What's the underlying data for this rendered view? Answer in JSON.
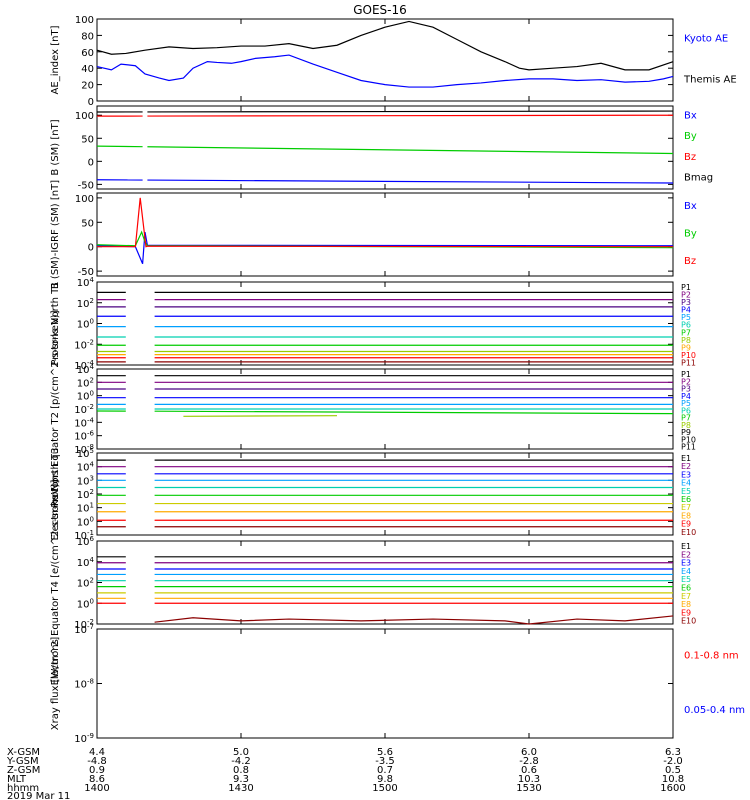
{
  "title": "GOES-16",
  "footer": {
    "date": "2019 Mar 11",
    "row_labels": [
      "X-GSM",
      "Y-GSM",
      "Z-GSM",
      "MLT",
      "hhmm"
    ],
    "columns": [
      [
        "4.4",
        "-4.8",
        "0.9",
        "8.6",
        "1400"
      ],
      [
        "5.0",
        "-4.2",
        "0.8",
        "9.3",
        "1430"
      ],
      [
        "5.6",
        "-3.5",
        "0.7",
        "9.8",
        "1500"
      ],
      [
        "6.0",
        "-2.8",
        "0.6",
        "10.3",
        "1530"
      ],
      [
        "6.3",
        "-2.0",
        "0.5",
        "10.8",
        "1600"
      ]
    ]
  },
  "chart_data": [
    {
      "type": "line",
      "ylabel": "AE_index [nT]",
      "ylim": [
        0,
        100
      ],
      "yticks": [
        "0",
        "20",
        "40",
        "60",
        "80",
        "100"
      ],
      "xlim": [
        0,
        120
      ],
      "series": [
        {
          "name": "Kyoto AE",
          "color": "#0000ff",
          "x": [
            0,
            3,
            5,
            8,
            10,
            13,
            15,
            18,
            20,
            23,
            25,
            28,
            30,
            33,
            37,
            40,
            45,
            50,
            55,
            60,
            65,
            70,
            75,
            80,
            85,
            90,
            95,
            100,
            105,
            110,
            115,
            118,
            120
          ],
          "y": [
            42,
            38,
            45,
            43,
            33,
            28,
            25,
            28,
            40,
            48,
            47,
            46,
            48,
            52,
            54,
            56,
            45,
            35,
            25,
            20,
            17,
            17,
            20,
            22,
            25,
            27,
            27,
            25,
            26,
            23,
            24,
            27,
            30
          ]
        },
        {
          "name": "Themis AE",
          "color": "#000000",
          "x": [
            0,
            3,
            6,
            10,
            15,
            20,
            25,
            30,
            35,
            40,
            45,
            50,
            55,
            60,
            65,
            70,
            75,
            80,
            85,
            88,
            90,
            95,
            100,
            105,
            110,
            115,
            120
          ],
          "y": [
            62,
            57,
            58,
            62,
            66,
            64,
            65,
            67,
            67,
            70,
            64,
            68,
            80,
            90,
            97,
            90,
            75,
            60,
            48,
            40,
            38,
            40,
            42,
            46,
            38,
            38,
            48
          ]
        }
      ]
    },
    {
      "type": "line",
      "ylabel": "B (SM) [nT]",
      "ylim": [
        -60,
        120
      ],
      "yticks": [
        "-50",
        "0",
        "50",
        "100"
      ],
      "xlim": [
        0,
        120
      ],
      "gap": [
        9.5,
        10.5
      ],
      "series": [
        {
          "name": "Bx",
          "color": "#0000ff",
          "x": [
            0,
            120
          ],
          "y": [
            -40,
            -47
          ]
        },
        {
          "name": "By",
          "color": "#00cc00",
          "x": [
            0,
            120
          ],
          "y": [
            33,
            17
          ]
        },
        {
          "name": "Bz",
          "color": "#ff0000",
          "x": [
            0,
            120
          ],
          "y": [
            98,
            100
          ]
        },
        {
          "name": "Bmag",
          "color": "#000000",
          "x": [
            0,
            120
          ],
          "y": [
            107,
            109
          ]
        }
      ]
    },
    {
      "type": "line",
      "ylabel": "B (SM)-IGRF (SM) [nT]",
      "ylim": [
        -60,
        110
      ],
      "yticks": [
        "-50",
        "0",
        "50",
        "100"
      ],
      "xlim": [
        0,
        120
      ],
      "series": [
        {
          "name": "Bx",
          "color": "#0000ff",
          "x": [
            0,
            8,
            9.5,
            10,
            10.5,
            120
          ],
          "y": [
            2,
            0,
            -35,
            30,
            3,
            2
          ]
        },
        {
          "name": "By",
          "color": "#00cc00",
          "x": [
            0,
            8,
            9.3,
            10,
            10.5,
            120
          ],
          "y": [
            4,
            2,
            30,
            10,
            2,
            -2
          ]
        },
        {
          "name": "Bz",
          "color": "#ff0000",
          "x": [
            0,
            8,
            9.0,
            10.2,
            10.5,
            120
          ],
          "y": [
            0,
            0,
            100,
            0,
            1,
            0
          ]
        }
      ]
    },
    {
      "type": "line",
      "ylabel": "Protons North T1",
      "ylim": [
        "1e-4",
        "1e4"
      ],
      "log": true,
      "yticks": [
        "10^-4",
        "10^-2",
        "10^0",
        "10^2",
        "10^4"
      ],
      "xlim": [
        0,
        120
      ],
      "gap": [
        6,
        12
      ],
      "legend": [
        "P1",
        "P2",
        "P3",
        "P4",
        "P5",
        "P6",
        "P7",
        "P8",
        "P9",
        "P10",
        "P11"
      ],
      "series": [
        {
          "name": "P1",
          "color": "#000000",
          "x": [
            0,
            120
          ],
          "y": [
            1000,
            1000
          ]
        },
        {
          "name": "P2",
          "color": "#800080",
          "x": [
            0,
            120
          ],
          "y": [
            200,
            200
          ]
        },
        {
          "name": "P3",
          "color": "#4b0082",
          "x": [
            0,
            120
          ],
          "y": [
            40,
            40
          ]
        },
        {
          "name": "P4",
          "color": "#0000ff",
          "x": [
            0,
            120
          ],
          "y": [
            5,
            5
          ]
        },
        {
          "name": "P5",
          "color": "#00a0ff",
          "x": [
            0,
            120
          ],
          "y": [
            0.5,
            0.5
          ]
        },
        {
          "name": "P6",
          "color": "#00d0b0",
          "x": [
            0,
            120
          ],
          "y": [
            0.05,
            0.05
          ]
        },
        {
          "name": "P7",
          "color": "#00cc00",
          "x": [
            0,
            120
          ],
          "y": [
            0.008,
            0.008
          ]
        },
        {
          "name": "P8",
          "color": "#99cc00",
          "x": [
            0,
            120
          ],
          "y": [
            0.002,
            0.002
          ]
        },
        {
          "name": "P9",
          "color": "#ffaa00",
          "x": [
            0,
            120
          ],
          "y": [
            0.001,
            0.001
          ]
        },
        {
          "name": "P10",
          "color": "#ff0000",
          "x": [
            0,
            120
          ],
          "y": [
            0.0005,
            0.0005
          ]
        },
        {
          "name": "P11",
          "color": "#8b0000",
          "x": [
            0,
            120
          ],
          "y": [
            0.0002,
            0.0002
          ]
        }
      ]
    },
    {
      "type": "line",
      "ylabel": "Protons Equator T2 [p/(cm^2-s-sr-keV)]",
      "ylim": [
        "1e-8",
        "1e4"
      ],
      "log": true,
      "yticks": [
        "10^-8",
        "10^-6",
        "10^-4",
        "10^-2",
        "10^0",
        "10^2",
        "10^4"
      ],
      "xlim": [
        0,
        120
      ],
      "gap": [
        6,
        12
      ],
      "legend": [
        "P1",
        "P2",
        "P3",
        "P4",
        "P5",
        "P6",
        "P7",
        "P8",
        "P9",
        "P10",
        "P11"
      ],
      "series": [
        {
          "name": "P1",
          "color": "#000000",
          "x": [
            0,
            120
          ],
          "y": [
            1000,
            1000
          ]
        },
        {
          "name": "P2",
          "color": "#800080",
          "x": [
            0,
            120
          ],
          "y": [
            100,
            100
          ]
        },
        {
          "name": "P3",
          "color": "#4b0082",
          "x": [
            0,
            120
          ],
          "y": [
            10,
            10
          ]
        },
        {
          "name": "P4",
          "color": "#0000ff",
          "x": [
            0,
            120
          ],
          "y": [
            0.5,
            0.5
          ]
        },
        {
          "name": "P5",
          "color": "#00a0ff",
          "x": [
            0,
            120
          ],
          "y": [
            0.05,
            0.05
          ]
        },
        {
          "name": "P6",
          "color": "#00d0b0",
          "x": [
            0,
            120
          ],
          "y": [
            0.01,
            0.01
          ]
        },
        {
          "name": "P7",
          "color": "#00cc00",
          "x": [
            0,
            120
          ],
          "y": [
            0.005,
            0.002
          ]
        },
        {
          "name": "P8",
          "color": "#99cc00",
          "x": [
            18,
            50
          ],
          "y": [
            0.0008,
            0.001
          ]
        }
      ]
    },
    {
      "type": "line",
      "ylabel": "Electrons North T3",
      "ylim": [
        "1e-1",
        "1e5"
      ],
      "log": true,
      "yticks": [
        "10^-1",
        "10^0",
        "10^1",
        "10^2",
        "10^3",
        "10^4",
        "10^5"
      ],
      "xlim": [
        0,
        120
      ],
      "gap": [
        6,
        12
      ],
      "legend": [
        "E1",
        "E2",
        "E3",
        "E4",
        "E5",
        "E6",
        "E7",
        "E8",
        "E9",
        "E10"
      ],
      "series": [
        {
          "name": "E1",
          "color": "#000000",
          "x": [
            0,
            120
          ],
          "y": [
            30000,
            30000
          ]
        },
        {
          "name": "E2",
          "color": "#800080",
          "x": [
            0,
            120
          ],
          "y": [
            10000,
            10000
          ]
        },
        {
          "name": "E3",
          "color": "#0000ff",
          "x": [
            0,
            120
          ],
          "y": [
            3000,
            3000
          ]
        },
        {
          "name": "E4",
          "color": "#00a0ff",
          "x": [
            0,
            120
          ],
          "y": [
            1000,
            1000
          ]
        },
        {
          "name": "E5",
          "color": "#00d0b0",
          "x": [
            0,
            120
          ],
          "y": [
            300,
            300
          ]
        },
        {
          "name": "E6",
          "color": "#00cc00",
          "x": [
            0,
            120
          ],
          "y": [
            80,
            80
          ]
        },
        {
          "name": "E7",
          "color": "#cccc00",
          "x": [
            0,
            120
          ],
          "y": [
            20,
            20
          ]
        },
        {
          "name": "E8",
          "color": "#ffaa00",
          "x": [
            0,
            120
          ],
          "y": [
            5,
            5
          ]
        },
        {
          "name": "E9",
          "color": "#ff0000",
          "x": [
            0,
            120
          ],
          "y": [
            1.2,
            1.2
          ]
        },
        {
          "name": "E10",
          "color": "#8b0000",
          "x": [
            0,
            120
          ],
          "y": [
            0.4,
            0.4
          ]
        }
      ]
    },
    {
      "type": "line",
      "ylabel": "Electrons Equator T4 [e/(cm^2-s-sr-keV)]",
      "ylim": [
        "1e-2",
        "1e6"
      ],
      "log": true,
      "yticks": [
        "10^-2",
        "10^0",
        "10^2",
        "10^4",
        "10^6"
      ],
      "xlim": [
        0,
        120
      ],
      "gap": [
        6,
        12
      ],
      "legend": [
        "E1",
        "E2",
        "E3",
        "E4",
        "E5",
        "E6",
        "E7",
        "E8",
        "E9",
        "E10"
      ],
      "series": [
        {
          "name": "E1",
          "color": "#000000",
          "x": [
            0,
            120
          ],
          "y": [
            30000,
            30000
          ]
        },
        {
          "name": "E2",
          "color": "#800080",
          "x": [
            0,
            120
          ],
          "y": [
            8000,
            8000
          ]
        },
        {
          "name": "E3",
          "color": "#0000ff",
          "x": [
            0,
            120
          ],
          "y": [
            2000,
            2000
          ]
        },
        {
          "name": "E4",
          "color": "#00a0ff",
          "x": [
            0,
            120
          ],
          "y": [
            600,
            600
          ]
        },
        {
          "name": "E5",
          "color": "#00d0b0",
          "x": [
            0,
            120
          ],
          "y": [
            150,
            150
          ]
        },
        {
          "name": "E6",
          "color": "#00cc00",
          "x": [
            0,
            120
          ],
          "y": [
            40,
            40
          ]
        },
        {
          "name": "E7",
          "color": "#cccc00",
          "x": [
            0,
            120
          ],
          "y": [
            10,
            10
          ]
        },
        {
          "name": "E8",
          "color": "#ffaa00",
          "x": [
            0,
            120
          ],
          "y": [
            3,
            3
          ]
        },
        {
          "name": "E9",
          "color": "#ff0000",
          "x": [
            0,
            120
          ],
          "y": [
            1,
            1
          ]
        },
        {
          "name": "E10",
          "color": "#8b0000",
          "x": [
            12,
            20,
            30,
            40,
            55,
            70,
            85,
            90,
            100,
            110,
            120
          ],
          "y": [
            0.015,
            0.04,
            0.02,
            0.03,
            0.02,
            0.03,
            0.02,
            0.01,
            0.03,
            0.02,
            0.06
          ]
        }
      ]
    },
    {
      "type": "line",
      "ylabel": "Xray flux [W/m^2]",
      "ylim": [
        "1e-9",
        "1e-7"
      ],
      "log": true,
      "yticks": [
        "10^-9",
        "10^-8",
        "10^-7"
      ],
      "xlim": [
        0,
        120
      ],
      "series": [
        {
          "name": "0.1-0.8 nm",
          "color": "#ff0000"
        },
        {
          "name": "0.05-0.4 nm",
          "color": "#0000ff"
        }
      ]
    }
  ],
  "xaxis": {
    "ticks": [
      0,
      30,
      60,
      90,
      120
    ]
  }
}
